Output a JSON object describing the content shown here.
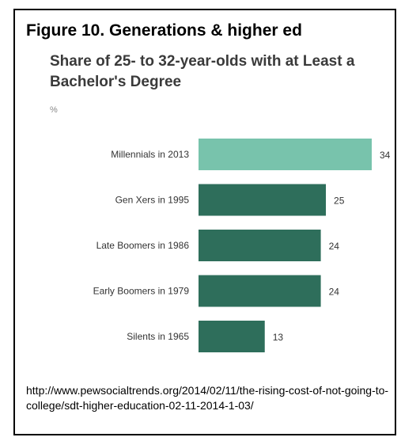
{
  "figure_title": "Figure 10. Generations & higher ed",
  "source_text": "http://www.pewsocialtrends.org/2014/02/11/the-rising-cost-of-not-going-to-college/sdt-higher-education-02-11-2014-1-03/",
  "chart_data": {
    "type": "bar",
    "orientation": "horizontal",
    "title": "Share of 25- to 32-year-olds with at Least a Bachelor's Degree",
    "unit_label": "%",
    "categories": [
      "Millennials in 2013",
      "Gen Xers in 1995",
      "Late Boomers in 1986",
      "Early Boomers in 1979",
      "Silents in 1965"
    ],
    "values": [
      34,
      25,
      24,
      24,
      13
    ],
    "value_labels": [
      "34",
      "25",
      "24",
      "24",
      "13"
    ],
    "colors": [
      "#78c3ac",
      "#2e6e5b",
      "#2e6e5b",
      "#2e6e5b",
      "#2e6e5b"
    ],
    "xlim": [
      0,
      34
    ],
    "grid": false,
    "legend": "none"
  }
}
